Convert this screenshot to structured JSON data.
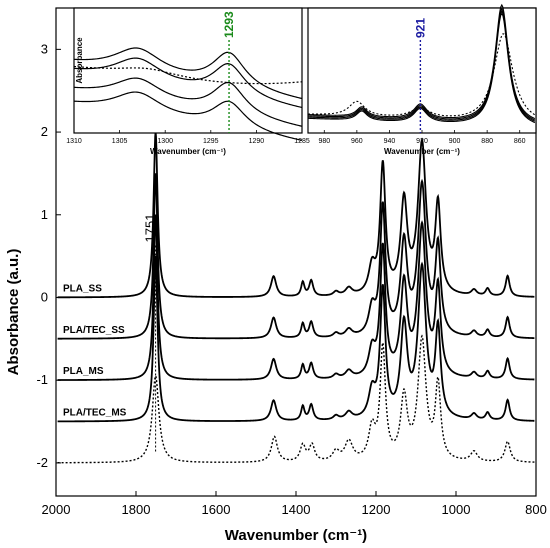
{
  "chart_data": {
    "type": "line",
    "xlabel": "Wavenumber (cm⁻¹)",
    "ylabel": "Absorbance (a.u.)",
    "xlim": [
      2000,
      800
    ],
    "ylim": [
      -2.4,
      3.5
    ],
    "x_ticks": [
      2000,
      1800,
      1600,
      1400,
      1200,
      1000,
      800
    ],
    "y_ticks": [
      -2,
      -1,
      0,
      1,
      2,
      3
    ],
    "series_labels": [
      "PLA_SS",
      "PLA/TEC_SS",
      "PLA_MS",
      "PLA/TEC_MS"
    ],
    "series_offsets": [
      0,
      -0.5,
      -1.0,
      -1.5,
      -2.0
    ],
    "peak_annotation": {
      "label": "1751",
      "x": 1751
    },
    "peaks": [
      {
        "x": 1751,
        "h": 2.0,
        "w": 6
      },
      {
        "x": 1456,
        "h": 0.25,
        "w": 8
      },
      {
        "x": 1383,
        "h": 0.17,
        "w": 5
      },
      {
        "x": 1362,
        "h": 0.19,
        "w": 6
      },
      {
        "x": 1300,
        "h": 0.05,
        "w": 8
      },
      {
        "x": 1268,
        "h": 0.09,
        "w": 10
      },
      {
        "x": 1210,
        "h": 0.32,
        "w": 10
      },
      {
        "x": 1183,
        "h": 1.55,
        "w": 8
      },
      {
        "x": 1130,
        "h": 1.1,
        "w": 10
      },
      {
        "x": 1085,
        "h": 1.8,
        "w": 12
      },
      {
        "x": 1045,
        "h": 1.05,
        "w": 8
      },
      {
        "x": 955,
        "h": 0.07,
        "w": 8
      },
      {
        "x": 921,
        "h": 0.09,
        "w": 6
      },
      {
        "x": 871,
        "h": 0.25,
        "w": 6
      }
    ],
    "dotted_peaks": [
      {
        "x": 1751,
        "h": 1.05,
        "w": 10
      },
      {
        "x": 1454,
        "h": 0.31,
        "w": 9
      },
      {
        "x": 1383,
        "h": 0.2,
        "w": 8
      },
      {
        "x": 1360,
        "h": 0.2,
        "w": 8
      },
      {
        "x": 1300,
        "h": 0.12,
        "w": 10
      },
      {
        "x": 1268,
        "h": 0.24,
        "w": 12
      },
      {
        "x": 1210,
        "h": 0.38,
        "w": 10
      },
      {
        "x": 1183,
        "h": 1.35,
        "w": 8
      },
      {
        "x": 1130,
        "h": 0.75,
        "w": 10
      },
      {
        "x": 1085,
        "h": 1.45,
        "w": 12
      },
      {
        "x": 1045,
        "h": 0.9,
        "w": 8
      },
      {
        "x": 955,
        "h": 0.12,
        "w": 10
      },
      {
        "x": 871,
        "h": 0.25,
        "w": 8
      }
    ],
    "insets": [
      {
        "xlim": [
          1310,
          1285
        ],
        "x_ticks": [
          1310,
          1305,
          1300,
          1295,
          1290,
          1285
        ],
        "xlabel": "Wavenumber (cm⁻¹)",
        "ylabel": "Absorbance",
        "peak_annotation": {
          "label": "1293",
          "x": 1293,
          "color": "#1a8a1a"
        }
      },
      {
        "xlim": [
          990,
          850
        ],
        "x_ticks": [
          980,
          960,
          940,
          920,
          900,
          880,
          860
        ],
        "xlabel": "Wavenumber (cm⁻¹)",
        "peak_annotation": {
          "label": "921",
          "x": 921,
          "color": "#1a1aa0"
        }
      }
    ]
  }
}
